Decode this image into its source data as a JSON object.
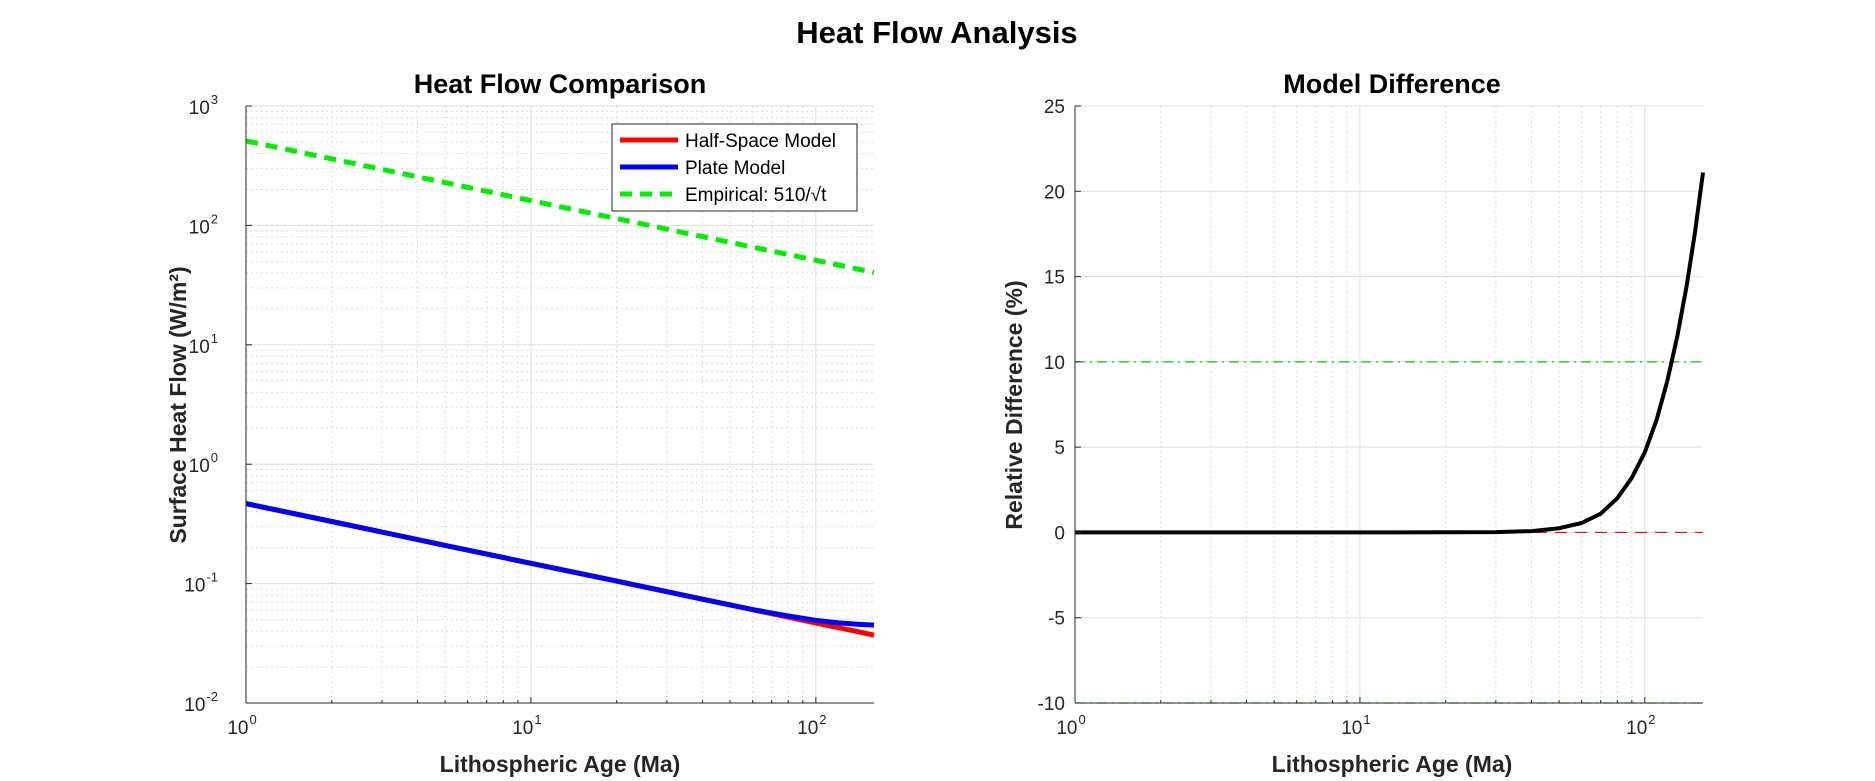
{
  "figure": {
    "title": "Heat Flow Analysis"
  },
  "chart_data": [
    {
      "type": "line",
      "title": "Heat Flow Comparison",
      "xlabel": "Lithospheric Age (Ma)",
      "ylabel": "Surface Heat Flow (W/m²)",
      "xscale": "log",
      "yscale": "log",
      "xlim": [
        1,
        160
      ],
      "ylim": [
        0.01,
        1000
      ],
      "xticks": [
        1,
        10,
        100
      ],
      "xtick_labels": [
        [
          "10",
          "0"
        ],
        [
          "10",
          "1"
        ],
        [
          "10",
          "2"
        ]
      ],
      "yticks": [
        0.01,
        0.1,
        1,
        10,
        100,
        1000
      ],
      "ytick_labels": [
        [
          "10",
          "-2"
        ],
        [
          "10",
          "-1"
        ],
        [
          "10",
          "0"
        ],
        [
          "10",
          "1"
        ],
        [
          "10",
          "2"
        ],
        [
          "10",
          "3"
        ]
      ],
      "grid": true,
      "minor_grid": true,
      "legend_position": "top-right",
      "x": [
        1,
        2,
        5,
        10,
        20,
        40,
        60,
        80,
        100,
        120,
        140,
        160
      ],
      "series": [
        {
          "name": "Half-Space Model",
          "color": "#ff0000",
          "style": "solid",
          "values": [
            0.468,
            0.331,
            0.209,
            0.148,
            0.105,
            0.074,
            0.0604,
            0.0523,
            0.0468,
            0.0427,
            0.0396,
            0.037
          ]
        },
        {
          "name": "Plate Model",
          "color": "#0000ff",
          "style": "solid",
          "values": [
            0.468,
            0.331,
            0.209,
            0.148,
            0.105,
            0.074,
            0.0606,
            0.0536,
            0.0493,
            0.0469,
            0.0457,
            0.0449
          ]
        },
        {
          "name": "Empirical: 510/√t",
          "color": "#00ee00",
          "style": "dashed",
          "values": [
            510,
            360.6,
            228.1,
            161.3,
            114.0,
            80.6,
            65.8,
            57.0,
            51.0,
            46.6,
            43.1,
            40.3
          ]
        }
      ]
    },
    {
      "type": "line",
      "title": "Model Difference",
      "xlabel": "Lithospheric Age (Ma)",
      "ylabel": "Relative Difference (%)",
      "xscale": "log",
      "yscale": "linear",
      "xlim": [
        1,
        160
      ],
      "ylim": [
        -10,
        25
      ],
      "xticks": [
        1,
        10,
        100
      ],
      "xtick_labels": [
        [
          "10",
          "0"
        ],
        [
          "10",
          "1"
        ],
        [
          "10",
          "2"
        ]
      ],
      "yticks": [
        -10,
        -5,
        0,
        5,
        10,
        15,
        20,
        25
      ],
      "ytick_labels": [
        "-10",
        "-5",
        "0",
        "5",
        "10",
        "15",
        "20",
        "25"
      ],
      "grid": true,
      "minor_grid": true,
      "reference_lines": [
        {
          "y": 0,
          "color": "#ff0000",
          "style": "dashed"
        },
        {
          "y": 10,
          "color": "#00cc00",
          "style": "dashdot"
        },
        {
          "y": -10,
          "color": "#00cc00",
          "style": "dashdot"
        }
      ],
      "x": [
        1,
        10,
        30,
        40,
        50,
        60,
        70,
        80,
        90,
        100,
        110,
        120,
        130,
        140,
        150,
        160
      ],
      "series": [
        {
          "color": "#000000",
          "style": "solid",
          "values": [
            0,
            0,
            0.02,
            0.08,
            0.25,
            0.55,
            1.1,
            2.0,
            3.2,
            4.7,
            6.6,
            8.9,
            11.5,
            14.4,
            17.6,
            21.1
          ]
        }
      ]
    }
  ]
}
